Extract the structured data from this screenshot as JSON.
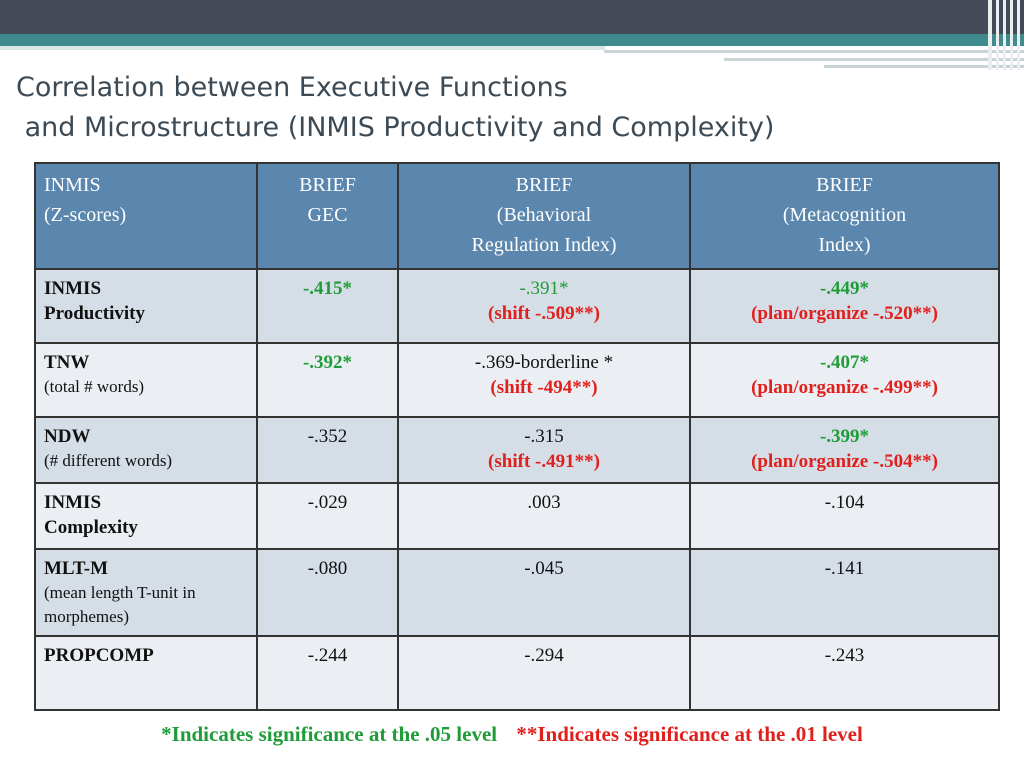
{
  "title": {
    "line1": "Correlation between Executive Functions",
    "line2": " and Microstructure (INMIS Productivity and Complexity)"
  },
  "table": {
    "headers": [
      {
        "line1": "INMIS",
        "line2": "(Z-scores)"
      },
      {
        "line1": "BRIEF",
        "line2": "GEC"
      },
      {
        "line1": "BRIEF",
        "line2": "(Behavioral",
        "line3": "Regulation Index)"
      },
      {
        "line1": "BRIEF",
        "line2": "(Metacognition",
        "line3": "Index)"
      }
    ],
    "rows": [
      {
        "label": "INMIS",
        "label2": "Productivity",
        "gec": "-.415*",
        "bri": "-.391*",
        "bri_sub": "(shift -.509**)",
        "mi": "-.449*",
        "mi_sub": "(plan/organize -.520**)"
      },
      {
        "label": "TNW",
        "sublabel": "(total # words)",
        "gec": "-.392*",
        "bri": "-.369-borderline *",
        "bri_sub": "(shift -494**)",
        "mi": "-.407*",
        "mi_sub": "(plan/organize -.499**)"
      },
      {
        "label": "NDW",
        "sublabel": "(# different words)",
        "gec": "-.352",
        "bri": "-.315",
        "bri_sub": "(shift -.491**)",
        "mi": "-.399*",
        "mi_sub": "(plan/organize -.504**)"
      },
      {
        "label": "INMIS",
        "label2": "Complexity",
        "gec": "-.029",
        "bri": ".003",
        "mi": "-.104"
      },
      {
        "label": "MLT-M",
        "sublabel": "(mean length T-unit in morphemes)",
        "gec": "-.080",
        "bri": "-.045",
        "mi": "-.141"
      },
      {
        "label": "PROPCOMP",
        "gec": "-.244",
        "bri": "-.294",
        "mi": "-.243"
      }
    ]
  },
  "footer": {
    "note1": "*Indicates significance at the .05 level",
    "note2": "**Indicates significance at the .01 level"
  },
  "colors": {
    "header_bg": "#5b86ad",
    "significant_05": "#1f9c38",
    "significant_01": "#e0201c",
    "title": "#3c4a55"
  }
}
